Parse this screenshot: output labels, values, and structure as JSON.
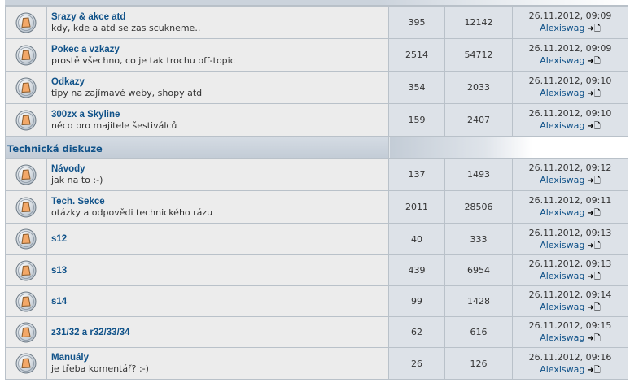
{
  "categories": [
    {
      "title": "",
      "forums": [
        {
          "title": "Srazy & akce atd",
          "desc": "kdy, kde a atd se zas scukneme..",
          "topics": "395",
          "posts": "12142",
          "last_date": "26.11.2012, 09:09",
          "last_author": "Alexiswag"
        },
        {
          "title": "Pokec a vzkazy",
          "desc": "prostě všechno, co je tak trochu off-topic",
          "topics": "2514",
          "posts": "54712",
          "last_date": "26.11.2012, 09:09",
          "last_author": "Alexiswag"
        },
        {
          "title": "Odkazy",
          "desc": "tipy na zajímavé weby, shopy atd",
          "topics": "354",
          "posts": "2033",
          "last_date": "26.11.2012, 09:10",
          "last_author": "Alexiswag"
        },
        {
          "title": "300zx a Skyline",
          "desc": "něco pro majitele šestiválců",
          "topics": "159",
          "posts": "2407",
          "last_date": "26.11.2012, 09:10",
          "last_author": "Alexiswag"
        }
      ]
    },
    {
      "title": "Technická diskuze",
      "forums": [
        {
          "title": "Návody",
          "desc": "jak na to :-)",
          "topics": "137",
          "posts": "1493",
          "last_date": "26.11.2012, 09:12",
          "last_author": "Alexiswag"
        },
        {
          "title": "Tech. Sekce",
          "desc": "otázky a odpovědi technického rázu",
          "topics": "2011",
          "posts": "28506",
          "last_date": "26.11.2012, 09:11",
          "last_author": "Alexiswag"
        },
        {
          "title": "s12",
          "desc": "",
          "topics": "40",
          "posts": "333",
          "last_date": "26.11.2012, 09:13",
          "last_author": "Alexiswag"
        },
        {
          "title": "s13",
          "desc": "",
          "topics": "439",
          "posts": "6954",
          "last_date": "26.11.2012, 09:13",
          "last_author": "Alexiswag"
        },
        {
          "title": "s14",
          "desc": "",
          "topics": "99",
          "posts": "1428",
          "last_date": "26.11.2012, 09:14",
          "last_author": "Alexiswag"
        },
        {
          "title": "z31/32 a r32/33/34",
          "desc": "",
          "topics": "62",
          "posts": "616",
          "last_date": "26.11.2012, 09:15",
          "last_author": "Alexiswag"
        },
        {
          "title": "Manuály",
          "desc": "je třeba komentář? :-)",
          "topics": "26",
          "posts": "126",
          "last_date": "26.11.2012, 09:16",
          "last_author": "Alexiswag"
        }
      ]
    }
  ],
  "icons": {
    "forum": "forum-read-icon",
    "goto": "view-latest-post-icon"
  },
  "colors": {
    "link": "#105289",
    "row_bg": "#ececec",
    "stat_bg": "#dde2e8",
    "border": "#b9c1c9"
  }
}
